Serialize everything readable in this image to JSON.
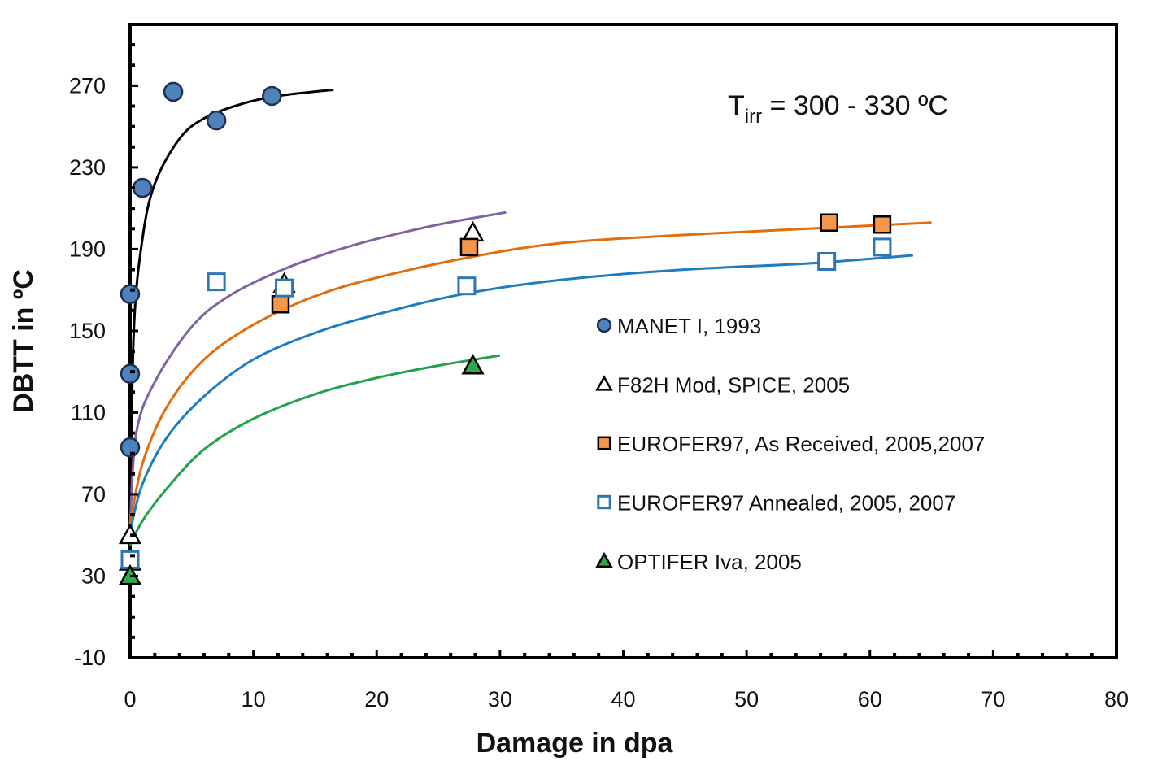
{
  "chart_data": {
    "type": "scatter",
    "title": "",
    "xlabel": "Damage in dpa",
    "ylabel": "DBTT in ºC",
    "xlim": [
      0,
      80
    ],
    "ylim": [
      -10,
      300
    ],
    "xticks": [
      "0",
      "10",
      "20",
      "30",
      "40",
      "50",
      "60",
      "70",
      "80"
    ],
    "yticks": [
      "-10",
      "30",
      "70",
      "110",
      "150",
      "190",
      "230",
      "270"
    ],
    "grid": false,
    "legend_position": "center-right",
    "annotation": {
      "main": "T",
      "sub": "irr",
      "rest": " = 300 - 330 ºC"
    },
    "series": [
      {
        "name": "MANET I, 1993",
        "marker": "circle",
        "fill": "#4F81BD",
        "stroke": "#1F2F4F",
        "line_color": "#000000",
        "points": [
          [
            0,
            93
          ],
          [
            0,
            129
          ],
          [
            0,
            168
          ],
          [
            1,
            220
          ],
          [
            3.5,
            267
          ],
          [
            7,
            253
          ],
          [
            11.5,
            265
          ]
        ],
        "trend": [
          [
            0,
            55
          ],
          [
            0.3,
            150
          ],
          [
            1,
            195
          ],
          [
            2,
            222
          ],
          [
            4,
            244
          ],
          [
            6,
            254
          ],
          [
            9,
            261
          ],
          [
            12,
            265
          ],
          [
            16.5,
            268
          ]
        ]
      },
      {
        "name": "F82H Mod, SPICE, 2005",
        "marker": "triangle-open",
        "fill": "#ffffff",
        "stroke": "#000000",
        "line_color": "#8064A2",
        "points": [
          [
            0,
            50
          ],
          [
            0,
            37
          ],
          [
            12.5,
            173
          ],
          [
            27.8,
            198
          ]
        ],
        "trend": [
          [
            0,
            55
          ],
          [
            0.5,
            100
          ],
          [
            2,
            125
          ],
          [
            5,
            152
          ],
          [
            8,
            167
          ],
          [
            12,
            179
          ],
          [
            16,
            188
          ],
          [
            20,
            195
          ],
          [
            25,
            202
          ],
          [
            30.5,
            208
          ]
        ]
      },
      {
        "name": "EUROFER97, As Received, 2005,2007",
        "marker": "square",
        "fill": "#F79646",
        "stroke": "#000000",
        "line_color": "#E46C0A",
        "points": [
          [
            12.2,
            163
          ],
          [
            27.5,
            191
          ],
          [
            56.7,
            203
          ],
          [
            61,
            202
          ]
        ],
        "trend": [
          [
            0,
            55
          ],
          [
            1,
            85
          ],
          [
            3,
            113
          ],
          [
            6,
            136
          ],
          [
            10,
            153
          ],
          [
            15,
            167
          ],
          [
            20,
            176
          ],
          [
            27.5,
            186
          ],
          [
            35,
            193
          ],
          [
            45,
            197
          ],
          [
            55,
            200
          ],
          [
            65,
            203
          ]
        ]
      },
      {
        "name": "EUROFER97 Annealed, 2005, 2007",
        "marker": "square-open",
        "fill": "#ffffff",
        "stroke": "#2E75B6",
        "line_color": "#1E7CC0",
        "points": [
          [
            0,
            38
          ],
          [
            7,
            174
          ],
          [
            12.5,
            171
          ],
          [
            27.3,
            172
          ],
          [
            56.5,
            184
          ],
          [
            61,
            191
          ]
        ],
        "trend": [
          [
            0,
            52
          ],
          [
            1,
            75
          ],
          [
            3,
            98
          ],
          [
            6,
            118
          ],
          [
            10,
            136
          ],
          [
            15,
            149
          ],
          [
            20,
            158
          ],
          [
            27,
            168
          ],
          [
            35,
            175
          ],
          [
            45,
            180
          ],
          [
            55,
            183
          ],
          [
            63.5,
            187
          ]
        ]
      },
      {
        "name": "OPTIFER Iva, 2005",
        "marker": "triangle",
        "fill": "#2EA84A",
        "stroke": "#000000",
        "line_color": "#23A24D",
        "points": [
          [
            0,
            30
          ],
          [
            27.8,
            133
          ]
        ],
        "trend": [
          [
            0,
            45
          ],
          [
            1,
            57
          ],
          [
            3,
            73
          ],
          [
            6,
            92
          ],
          [
            10,
            107
          ],
          [
            15,
            119
          ],
          [
            20,
            127
          ],
          [
            25,
            133
          ],
          [
            30,
            138
          ]
        ]
      }
    ]
  }
}
